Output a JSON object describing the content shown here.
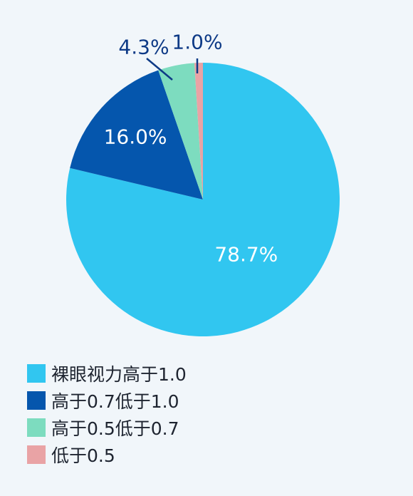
{
  "chart_data": {
    "type": "pie",
    "slices": [
      {
        "label": "裸眼视力高于1.0",
        "value": 78.7,
        "value_label": "78.7%",
        "color": "#31c6f0",
        "label_color": "#ffffff",
        "label_placement": "inside"
      },
      {
        "label": "高于0.7低于1.0",
        "value": 16.0,
        "value_label": "16.0%",
        "color": "#0556ad",
        "label_color": "#ffffff",
        "label_placement": "inside"
      },
      {
        "label": "高于0.5低于0.7",
        "value": 4.3,
        "value_label": "4.3%",
        "color": "#7ddcbf",
        "label_color": "#0e3a86",
        "label_placement": "outside"
      },
      {
        "label": "低于0.5",
        "value": 1.0,
        "value_label": "1.0%",
        "color": "#e9a3a5",
        "label_color": "#0e3a86",
        "label_placement": "outside"
      }
    ],
    "start": "12 o'clock",
    "direction": "clockwise",
    "legend_position": "bottom-left"
  }
}
